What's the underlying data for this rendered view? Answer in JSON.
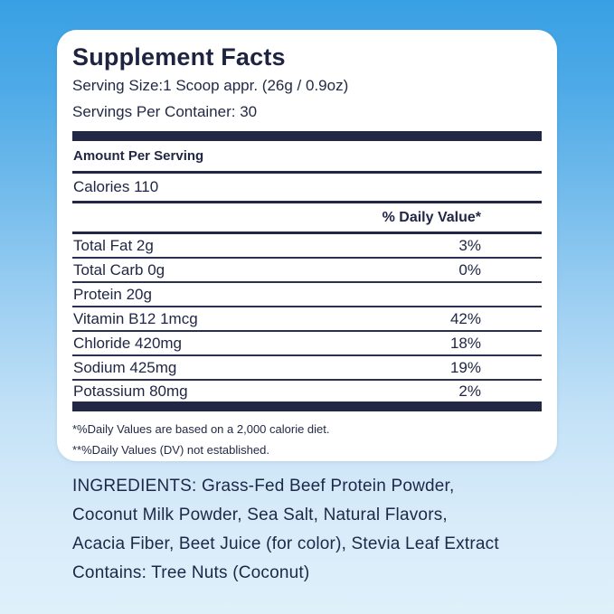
{
  "colors": {
    "text_navy": "#212744",
    "background_top": "#38a0e4",
    "background_bottom": "#def0fa",
    "panel_background": "#ffffff"
  },
  "panel": {
    "title": "Supplement Facts",
    "serving_size": "Serving Size:1 Scoop appr. (26g / 0.9oz)",
    "servings_per_container": "Servings Per Container: 30",
    "amount_per_serving": "Amount Per Serving",
    "calories": "Calories 110",
    "daily_value_header": "% Daily Value*",
    "nutrients": [
      {
        "name": "Total Fat 2g",
        "dv": "3%"
      },
      {
        "name": "Total Carb 0g",
        "dv": "0%"
      },
      {
        "name": "Protein 20g",
        "dv": ""
      },
      {
        "name": "Vitamin B12 1mcg",
        "dv": "42%"
      },
      {
        "name": "Chloride 420mg",
        "dv": "18%"
      },
      {
        "name": "Sodium 425mg",
        "dv": "19%"
      },
      {
        "name": "Potassium 80mg",
        "dv": "2%"
      }
    ],
    "footnotes": [
      "*%Daily Values are based on a 2,000 calorie diet.",
      "**%Daily Values (DV) not established."
    ]
  },
  "ingredients": {
    "lines": [
      "INGREDIENTS: Grass-Fed Beef Protein Powder,",
      "Coconut Milk Powder, Sea Salt, Natural Flavors,",
      "Acacia Fiber, Beet Juice (for color), Stevia Leaf Extract",
      "Contains: Tree Nuts (Coconut)"
    ]
  }
}
